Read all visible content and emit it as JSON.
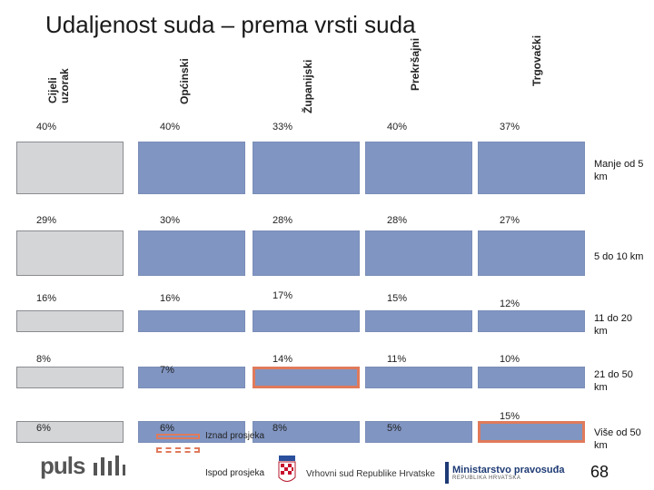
{
  "title": "Udaljenost suda – prema vrsti suda",
  "chart_data": {
    "type": "table",
    "columns": [
      "Cijeli uzorak",
      "Općinski",
      "Županijski",
      "Prekršajni",
      "Trgovački"
    ],
    "rows": [
      {
        "label": "Manje od 5 km",
        "values": [
          40,
          40,
          33,
          40,
          37
        ]
      },
      {
        "label": "5 do 10 km",
        "values": [
          29,
          30,
          28,
          28,
          27
        ]
      },
      {
        "label": "11 do 20 km",
        "values": [
          16,
          16,
          17,
          15,
          12
        ]
      },
      {
        "label": "21 do 50 km",
        "values": [
          8,
          7,
          14,
          11,
          10
        ]
      },
      {
        "label": "Više od 50 km",
        "values": [
          6,
          6,
          8,
          5,
          15
        ]
      }
    ],
    "value_labels": [
      [
        "40%",
        "40%",
        "33%",
        "40%",
        "37%"
      ],
      [
        "29%",
        "30%",
        "28%",
        "28%",
        "27%"
      ],
      [
        "16%",
        "16%",
        "17%",
        "15%",
        "12%"
      ],
      [
        "8%",
        "7%",
        "14%",
        "11%",
        "10%"
      ],
      [
        "6%",
        "6%",
        "8%",
        "5%",
        "15%"
      ]
    ],
    "highlight": [
      [
        null,
        null,
        null,
        null,
        null
      ],
      [
        null,
        null,
        null,
        null,
        null
      ],
      [
        null,
        null,
        null,
        null,
        null
      ],
      [
        null,
        null,
        "above",
        null,
        null
      ],
      [
        null,
        null,
        null,
        null,
        "above"
      ]
    ],
    "legend": [
      {
        "key": "above",
        "label": "Iznad prosjeka"
      },
      {
        "key": "below",
        "label": "Ispod prosjeka"
      }
    ]
  },
  "colors": {
    "bar": "#8095c2",
    "total_bar": "#d4d5d7",
    "highlight": "#e07a5b"
  },
  "footer": {
    "logo_puls": "puls",
    "court_text": "Vrhovni sud Republike Hrvatske",
    "ministry_text": "Ministarstvo pravosuđa",
    "ministry_sub": "REPUBLIKA HRVATSKA",
    "page_number": "68"
  }
}
